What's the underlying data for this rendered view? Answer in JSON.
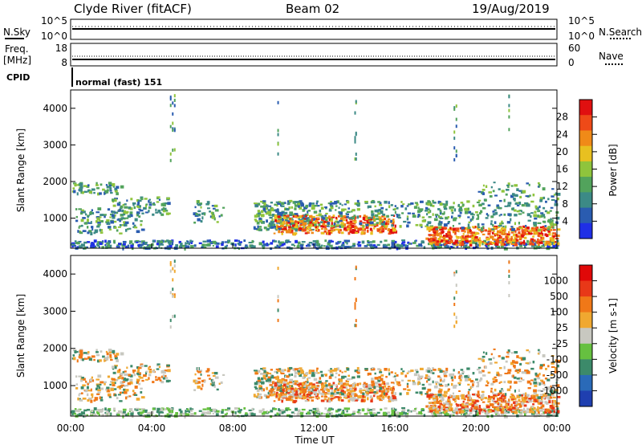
{
  "header": {
    "station": "Clyde River (fitACF)",
    "beam": "Beam 02",
    "date": "19/Aug/2019"
  },
  "noise_panel": {
    "left_label": "N.Sky",
    "right_label": "N.Search",
    "left_ticks": [
      "10^5",
      "10^0"
    ],
    "right_ticks": [
      "10^5",
      "10^0"
    ]
  },
  "freq_panel": {
    "left_label_line1": "Freq.",
    "left_label_line2": "[MHz]",
    "right_label": "Nave",
    "left_ticks": [
      "18",
      "8"
    ],
    "right_ticks": [
      "60",
      "0"
    ]
  },
  "cpid_panel": {
    "label": "CPID",
    "value": "normal (fast) 151"
  },
  "chart_data": [
    {
      "type": "heatmap",
      "title": "",
      "ylabel": "Slant Range [km]",
      "xlabel": "",
      "ylim": [
        180,
        4500
      ],
      "xlim_hours": [
        0,
        24
      ],
      "yticks": [
        "1000",
        "2000",
        "3000",
        "4000"
      ],
      "colorbar": {
        "label": "Power [dB]",
        "range": [
          0,
          32
        ],
        "ticks": [
          "4",
          "8",
          "12",
          "16",
          "20",
          "24",
          "28"
        ],
        "colors": [
          "#1f2fe6",
          "#2a5cb0",
          "#3c8a86",
          "#52a35c",
          "#8fc43c",
          "#e8c020",
          "#f08a18",
          "#ee4a18",
          "#e01010"
        ]
      }
    },
    {
      "type": "heatmap",
      "title": "",
      "ylabel": "Slant Range [km]",
      "xlabel": "Time UT",
      "ylim": [
        180,
        4500
      ],
      "xlim_hours": [
        0,
        24
      ],
      "yticks": [
        "1000",
        "2000",
        "3000",
        "4000"
      ],
      "xticks": [
        "00:00",
        "04:00",
        "08:00",
        "12:00",
        "16:00",
        "20:00",
        "00:00"
      ],
      "colorbar": {
        "label": "Velocity [m s-1]",
        "ticks": [
          "1000",
          "500",
          "100",
          "25",
          "-25",
          "-100",
          "-500",
          "-1000"
        ],
        "colors": [
          "#1f3fb0",
          "#2a6ab8",
          "#3c8a6a",
          "#66c040",
          "#c8c8c0",
          "#f0a830",
          "#f07818",
          "#e83818",
          "#e00808"
        ]
      }
    }
  ],
  "colors": {
    "power_scatter": [
      "#2a5cb0",
      "#3c8a86",
      "#52a35c",
      "#8fc43c"
    ],
    "power_strong": [
      "#f08a18",
      "#ee4a18",
      "#e01010",
      "#e8c020"
    ],
    "velocity_scatter": [
      "#f0a830",
      "#f07818",
      "#c8c8c0",
      "#3c8a6a"
    ]
  }
}
